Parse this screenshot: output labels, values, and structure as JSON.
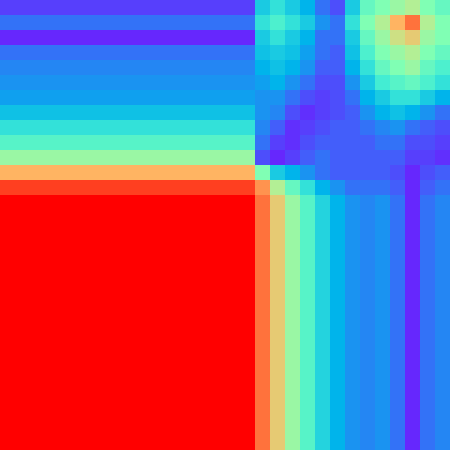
{
  "chart_data": {
    "type": "heatmap",
    "tick_labels": false,
    "zlim": [
      0,
      1
    ],
    "cells": [
      [
        0.08,
        0.08,
        0.08,
        0.08,
        0.08,
        0.08,
        0.08,
        0.08,
        0.08,
        0.08,
        0.08,
        0.08,
        0.08,
        0.08,
        0.08,
        0.08,
        0.08,
        0.3,
        0.35,
        0.3,
        0.25,
        0.15,
        0.1,
        0.3,
        0.45,
        0.5,
        0.55,
        0.6,
        0.5,
        0.45
      ],
      [
        0.15,
        0.15,
        0.15,
        0.15,
        0.15,
        0.15,
        0.15,
        0.15,
        0.15,
        0.15,
        0.15,
        0.15,
        0.15,
        0.15,
        0.15,
        0.15,
        0.15,
        0.35,
        0.4,
        0.35,
        0.3,
        0.2,
        0.15,
        0.35,
        0.5,
        0.6,
        0.75,
        0.85,
        0.6,
        0.5
      ],
      [
        0.05,
        0.05,
        0.05,
        0.05,
        0.05,
        0.05,
        0.05,
        0.05,
        0.05,
        0.05,
        0.05,
        0.05,
        0.05,
        0.05,
        0.05,
        0.05,
        0.05,
        0.3,
        0.35,
        0.3,
        0.25,
        0.15,
        0.15,
        0.3,
        0.45,
        0.55,
        0.65,
        0.7,
        0.55,
        0.5
      ],
      [
        0.15,
        0.15,
        0.15,
        0.15,
        0.15,
        0.15,
        0.15,
        0.15,
        0.15,
        0.15,
        0.15,
        0.15,
        0.15,
        0.15,
        0.15,
        0.15,
        0.15,
        0.28,
        0.3,
        0.28,
        0.22,
        0.15,
        0.12,
        0.28,
        0.4,
        0.5,
        0.55,
        0.6,
        0.5,
        0.45
      ],
      [
        0.18,
        0.18,
        0.18,
        0.18,
        0.18,
        0.18,
        0.18,
        0.18,
        0.18,
        0.18,
        0.18,
        0.18,
        0.18,
        0.18,
        0.18,
        0.18,
        0.18,
        0.25,
        0.28,
        0.25,
        0.2,
        0.12,
        0.12,
        0.25,
        0.35,
        0.45,
        0.5,
        0.55,
        0.45,
        0.4
      ],
      [
        0.2,
        0.2,
        0.2,
        0.2,
        0.2,
        0.2,
        0.2,
        0.2,
        0.2,
        0.2,
        0.2,
        0.2,
        0.2,
        0.2,
        0.2,
        0.2,
        0.2,
        0.22,
        0.25,
        0.2,
        0.15,
        0.1,
        0.1,
        0.2,
        0.3,
        0.38,
        0.42,
        0.45,
        0.4,
        0.35
      ],
      [
        0.22,
        0.22,
        0.22,
        0.22,
        0.22,
        0.22,
        0.22,
        0.22,
        0.22,
        0.22,
        0.22,
        0.22,
        0.22,
        0.22,
        0.22,
        0.22,
        0.22,
        0.2,
        0.2,
        0.15,
        0.1,
        0.08,
        0.1,
        0.15,
        0.25,
        0.3,
        0.35,
        0.35,
        0.3,
        0.25
      ],
      [
        0.28,
        0.28,
        0.28,
        0.28,
        0.28,
        0.28,
        0.28,
        0.28,
        0.28,
        0.28,
        0.28,
        0.28,
        0.28,
        0.28,
        0.28,
        0.28,
        0.28,
        0.2,
        0.18,
        0.1,
        0.06,
        0.08,
        0.1,
        0.12,
        0.2,
        0.25,
        0.28,
        0.25,
        0.2,
        0.15
      ],
      [
        0.35,
        0.35,
        0.35,
        0.35,
        0.35,
        0.35,
        0.35,
        0.35,
        0.35,
        0.35,
        0.35,
        0.35,
        0.35,
        0.35,
        0.35,
        0.35,
        0.35,
        0.18,
        0.12,
        0.06,
        0.08,
        0.1,
        0.12,
        0.12,
        0.15,
        0.18,
        0.2,
        0.15,
        0.12,
        0.1
      ],
      [
        0.42,
        0.42,
        0.42,
        0.42,
        0.42,
        0.42,
        0.42,
        0.42,
        0.42,
        0.42,
        0.42,
        0.42,
        0.42,
        0.42,
        0.42,
        0.42,
        0.42,
        0.15,
        0.08,
        0.06,
        0.1,
        0.12,
        0.12,
        0.12,
        0.12,
        0.15,
        0.15,
        0.1,
        0.1,
        0.08
      ],
      [
        0.55,
        0.55,
        0.55,
        0.55,
        0.55,
        0.55,
        0.55,
        0.55,
        0.55,
        0.55,
        0.55,
        0.55,
        0.55,
        0.55,
        0.55,
        0.55,
        0.55,
        0.1,
        0.05,
        0.08,
        0.12,
        0.15,
        0.12,
        0.12,
        0.12,
        0.12,
        0.12,
        0.08,
        0.08,
        0.06
      ],
      [
        0.75,
        0.75,
        0.75,
        0.75,
        0.75,
        0.75,
        0.75,
        0.75,
        0.75,
        0.75,
        0.75,
        0.75,
        0.75,
        0.75,
        0.75,
        0.75,
        0.75,
        0.5,
        0.3,
        0.25,
        0.2,
        0.15,
        0.12,
        0.12,
        0.12,
        0.12,
        0.1,
        0.05,
        0.1,
        0.12
      ],
      [
        0.92,
        0.92,
        0.92,
        0.92,
        0.92,
        0.92,
        0.92,
        0.92,
        0.92,
        0.92,
        0.92,
        0.92,
        0.92,
        0.92,
        0.92,
        0.92,
        0.92,
        0.8,
        0.6,
        0.45,
        0.35,
        0.25,
        0.2,
        0.15,
        0.15,
        0.15,
        0.12,
        0.05,
        0.12,
        0.15
      ],
      [
        1,
        1,
        1,
        1,
        1,
        1,
        1,
        1,
        1,
        1,
        1,
        1,
        1,
        1,
        1,
        1,
        1,
        0.85,
        0.7,
        0.55,
        0.42,
        0.32,
        0.25,
        0.2,
        0.18,
        0.2,
        0.15,
        0.05,
        0.15,
        0.18
      ],
      [
        1,
        1,
        1,
        1,
        1,
        1,
        1,
        1,
        1,
        1,
        1,
        1,
        1,
        1,
        1,
        1,
        1,
        0.85,
        0.7,
        0.55,
        0.42,
        0.32,
        0.25,
        0.2,
        0.18,
        0.2,
        0.15,
        0.05,
        0.15,
        0.18
      ],
      [
        1,
        1,
        1,
        1,
        1,
        1,
        1,
        1,
        1,
        1,
        1,
        1,
        1,
        1,
        1,
        1,
        1,
        0.85,
        0.7,
        0.55,
        0.42,
        0.32,
        0.25,
        0.2,
        0.18,
        0.2,
        0.15,
        0.05,
        0.15,
        0.18
      ],
      [
        1,
        1,
        1,
        1,
        1,
        1,
        1,
        1,
        1,
        1,
        1,
        1,
        1,
        1,
        1,
        1,
        1,
        0.85,
        0.7,
        0.55,
        0.42,
        0.32,
        0.25,
        0.2,
        0.18,
        0.2,
        0.15,
        0.05,
        0.15,
        0.18
      ],
      [
        1,
        1,
        1,
        1,
        1,
        1,
        1,
        1,
        1,
        1,
        1,
        1,
        1,
        1,
        1,
        1,
        1,
        0.85,
        0.7,
        0.55,
        0.42,
        0.32,
        0.25,
        0.2,
        0.18,
        0.2,
        0.15,
        0.05,
        0.15,
        0.18
      ],
      [
        1,
        1,
        1,
        1,
        1,
        1,
        1,
        1,
        1,
        1,
        1,
        1,
        1,
        1,
        1,
        1,
        1,
        0.85,
        0.7,
        0.55,
        0.42,
        0.32,
        0.25,
        0.2,
        0.18,
        0.2,
        0.15,
        0.05,
        0.15,
        0.18
      ],
      [
        1,
        1,
        1,
        1,
        1,
        1,
        1,
        1,
        1,
        1,
        1,
        1,
        1,
        1,
        1,
        1,
        1,
        0.85,
        0.7,
        0.55,
        0.42,
        0.32,
        0.25,
        0.2,
        0.18,
        0.2,
        0.15,
        0.05,
        0.15,
        0.18
      ],
      [
        1,
        1,
        1,
        1,
        1,
        1,
        1,
        1,
        1,
        1,
        1,
        1,
        1,
        1,
        1,
        1,
        1,
        0.85,
        0.7,
        0.55,
        0.42,
        0.32,
        0.25,
        0.2,
        0.18,
        0.2,
        0.15,
        0.05,
        0.15,
        0.18
      ],
      [
        1,
        1,
        1,
        1,
        1,
        1,
        1,
        1,
        1,
        1,
        1,
        1,
        1,
        1,
        1,
        1,
        1,
        0.85,
        0.7,
        0.55,
        0.42,
        0.32,
        0.25,
        0.2,
        0.18,
        0.2,
        0.15,
        0.05,
        0.15,
        0.18
      ],
      [
        1,
        1,
        1,
        1,
        1,
        1,
        1,
        1,
        1,
        1,
        1,
        1,
        1,
        1,
        1,
        1,
        1,
        0.85,
        0.7,
        0.55,
        0.42,
        0.32,
        0.25,
        0.2,
        0.18,
        0.2,
        0.15,
        0.05,
        0.15,
        0.18
      ],
      [
        1,
        1,
        1,
        1,
        1,
        1,
        1,
        1,
        1,
        1,
        1,
        1,
        1,
        1,
        1,
        1,
        1,
        0.85,
        0.7,
        0.55,
        0.42,
        0.32,
        0.25,
        0.2,
        0.18,
        0.2,
        0.15,
        0.05,
        0.15,
        0.18
      ],
      [
        1,
        1,
        1,
        1,
        1,
        1,
        1,
        1,
        1,
        1,
        1,
        1,
        1,
        1,
        1,
        1,
        1,
        0.85,
        0.7,
        0.55,
        0.42,
        0.32,
        0.25,
        0.2,
        0.18,
        0.2,
        0.15,
        0.05,
        0.15,
        0.18
      ],
      [
        1,
        1,
        1,
        1,
        1,
        1,
        1,
        1,
        1,
        1,
        1,
        1,
        1,
        1,
        1,
        1,
        1,
        0.85,
        0.7,
        0.55,
        0.42,
        0.32,
        0.25,
        0.2,
        0.18,
        0.2,
        0.15,
        0.05,
        0.15,
        0.18
      ],
      [
        1,
        1,
        1,
        1,
        1,
        1,
        1,
        1,
        1,
        1,
        1,
        1,
        1,
        1,
        1,
        1,
        1,
        0.85,
        0.7,
        0.55,
        0.42,
        0.32,
        0.25,
        0.2,
        0.18,
        0.2,
        0.15,
        0.05,
        0.15,
        0.18
      ],
      [
        1,
        1,
        1,
        1,
        1,
        1,
        1,
        1,
        1,
        1,
        1,
        1,
        1,
        1,
        1,
        1,
        1,
        0.85,
        0.7,
        0.55,
        0.42,
        0.32,
        0.25,
        0.2,
        0.18,
        0.2,
        0.15,
        0.05,
        0.15,
        0.18
      ],
      [
        1,
        1,
        1,
        1,
        1,
        1,
        1,
        1,
        1,
        1,
        1,
        1,
        1,
        1,
        1,
        1,
        1,
        0.85,
        0.7,
        0.55,
        0.42,
        0.32,
        0.25,
        0.2,
        0.18,
        0.2,
        0.15,
        0.05,
        0.15,
        0.18
      ],
      [
        1,
        1,
        1,
        1,
        1,
        1,
        1,
        1,
        1,
        1,
        1,
        1,
        1,
        1,
        1,
        1,
        1,
        0.85,
        0.7,
        0.55,
        0.42,
        0.32,
        0.25,
        0.2,
        0.18,
        0.2,
        0.15,
        0.05,
        0.15,
        0.18
      ]
    ]
  }
}
